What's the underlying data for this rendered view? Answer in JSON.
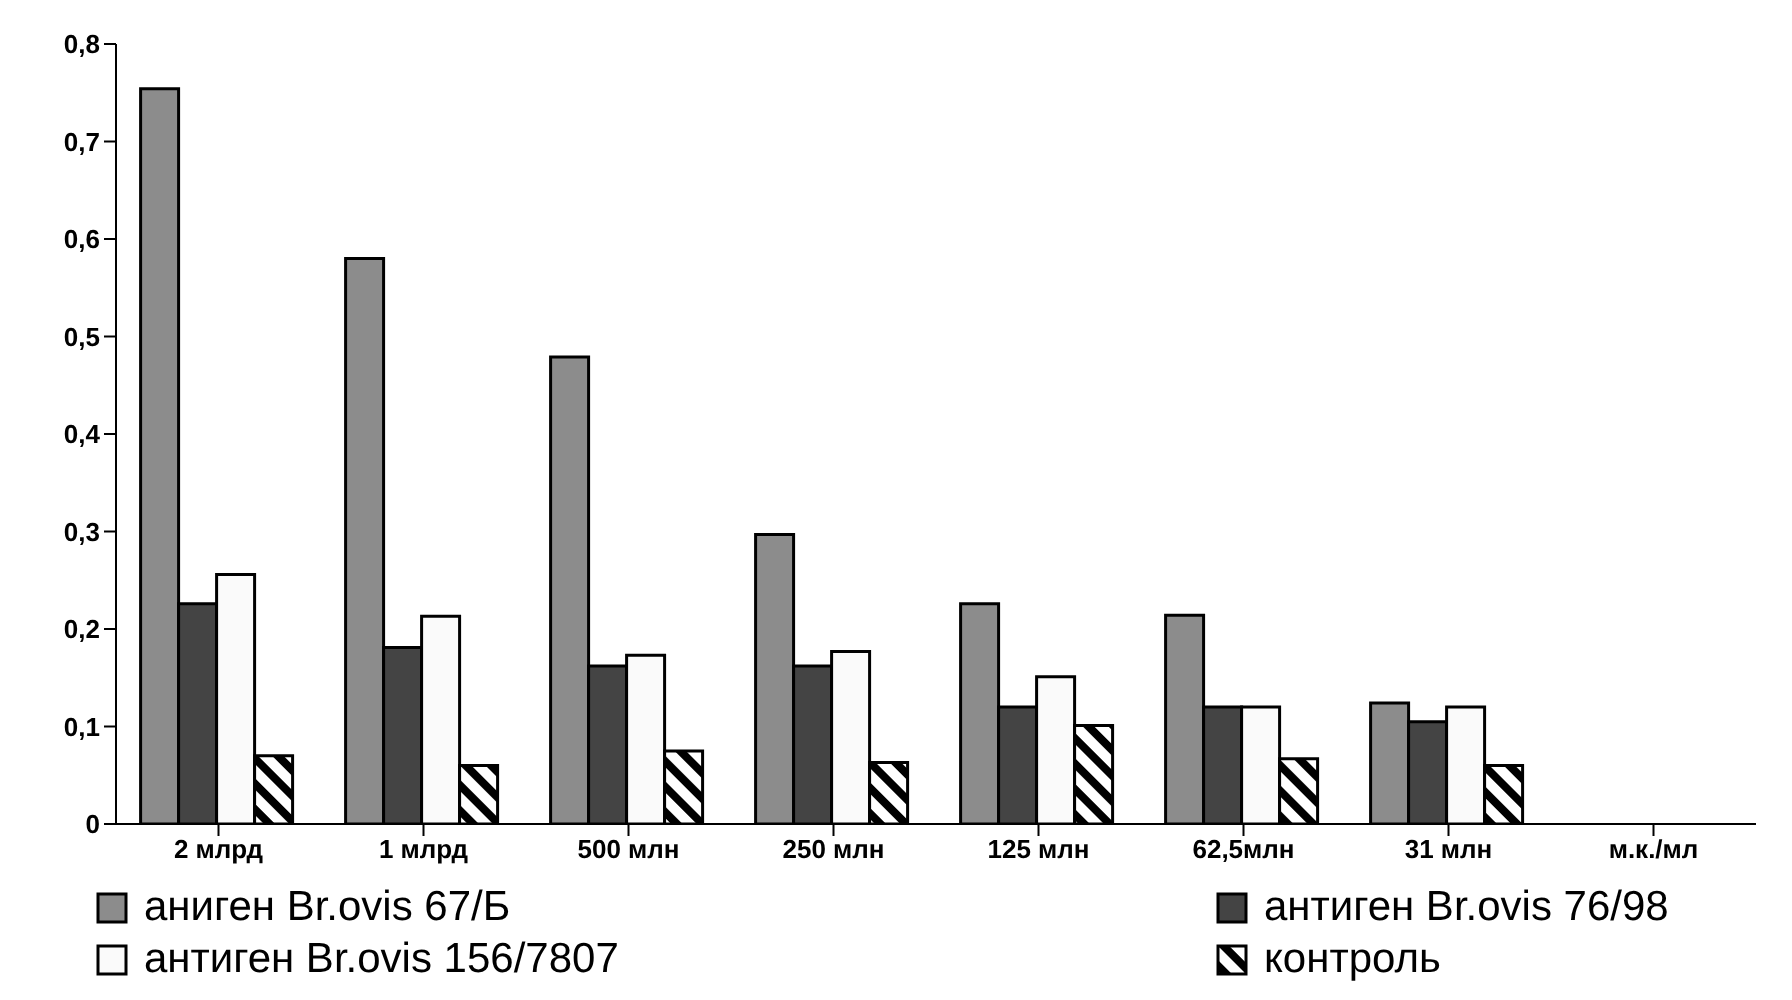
{
  "chart_data": {
    "type": "bar",
    "categories": [
      "2 млрд",
      "1 млрд",
      "500 млн",
      "250 млн",
      "125 млн",
      "62,5млн",
      "31 млн",
      "м.к./мл"
    ],
    "series": [
      {
        "name": "аниген Br.ovis 67/Б",
        "color": "#8c8c8c",
        "values": [
          0.754,
          0.58,
          0.479,
          0.297,
          0.226,
          0.214,
          0.124,
          null
        ]
      },
      {
        "name": "антиген Br.ovis 76/98",
        "color": "#444444",
        "values": [
          0.226,
          0.181,
          0.162,
          0.162,
          0.12,
          0.12,
          0.105,
          null
        ]
      },
      {
        "name": "антиген Br.ovis 156/7807",
        "color": "#fafafa",
        "values": [
          0.256,
          0.213,
          0.173,
          0.177,
          0.151,
          0.12,
          0.12,
          null
        ]
      },
      {
        "name": "контроль",
        "color": "#000000",
        "values": [
          0.07,
          0.06,
          0.075,
          0.063,
          0.101,
          0.067,
          0.06,
          null
        ]
      }
    ],
    "ylim": [
      0,
      0.8
    ],
    "yticks": [
      0,
      {
        "value": 0.1,
        "label": "0,1"
      },
      {
        "value": 0.2,
        "label": "0,2"
      },
      {
        "value": 0.3,
        "label": "0,3"
      },
      {
        "value": 0.4,
        "label": "0,4"
      },
      {
        "value": 0.5,
        "label": "0,5"
      },
      {
        "value": 0.6,
        "label": "0,6"
      },
      {
        "value": 0.7,
        "label": "0,7"
      },
      {
        "value": 0.8,
        "label": "0,8"
      }
    ],
    "grid": false,
    "legend": "bottom"
  }
}
